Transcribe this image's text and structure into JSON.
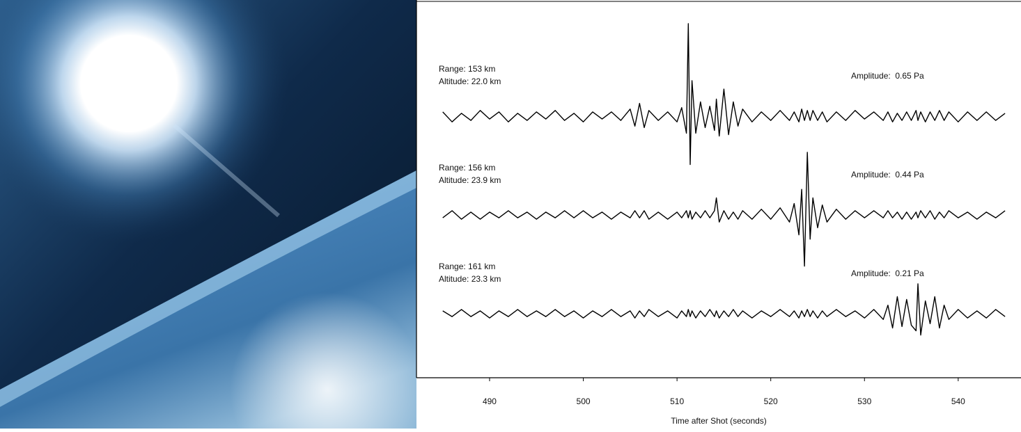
{
  "chart_data": {
    "type": "line",
    "xlabel": "Time after Shot (seconds)",
    "xlim": [
      482.2,
      546.7
    ],
    "xticks": [
      490,
      500,
      510,
      520,
      530,
      540
    ],
    "ylim": [
      -0.4,
      0.7
    ],
    "x": [
      485,
      486,
      487,
      488,
      489,
      490,
      491,
      492,
      493,
      494,
      495,
      496,
      497,
      498,
      499,
      500,
      501,
      502,
      503,
      504,
      505,
      505.5,
      506,
      506.5,
      507,
      508,
      509,
      510,
      510.5,
      511,
      511.2,
      511.4,
      511.6,
      512,
      512.5,
      513,
      513.5,
      514,
      514.2,
      514.5,
      515,
      515.5,
      516,
      516.5,
      517,
      518,
      519,
      520,
      521,
      522,
      522.5,
      523,
      523.3,
      523.6,
      523.9,
      524.2,
      524.5,
      525,
      525.5,
      526,
      527,
      528,
      529,
      530,
      531,
      532,
      532.5,
      533,
      533.5,
      534,
      534.5,
      535,
      535.5,
      535.7,
      536,
      536.5,
      537,
      537.5,
      538,
      538.5,
      539,
      540,
      541,
      542,
      543,
      544,
      545
    ],
    "series": [
      {
        "range_label": "Range: 153 km",
        "altitude_label": "Altitude: 22.0 km",
        "amplitude_label": "Amplitude:  0.65 Pa",
        "color": "#000000",
        "values": [
          0.03,
          -0.04,
          0.02,
          -0.03,
          0.04,
          -0.02,
          0.03,
          -0.04,
          0.02,
          -0.03,
          0.03,
          -0.02,
          0.04,
          -0.03,
          0.02,
          -0.04,
          0.03,
          -0.02,
          0.03,
          -0.03,
          0.05,
          -0.07,
          0.09,
          -0.08,
          0.04,
          -0.03,
          0.03,
          -0.04,
          0.06,
          -0.12,
          0.65,
          -0.34,
          0.25,
          -0.12,
          0.1,
          -0.08,
          0.07,
          -0.1,
          0.12,
          -0.14,
          0.19,
          -0.13,
          0.1,
          -0.07,
          0.05,
          -0.04,
          0.03,
          -0.03,
          0.04,
          -0.03,
          0.03,
          -0.04,
          0.05,
          -0.03,
          0.04,
          -0.03,
          0.04,
          -0.03,
          0.03,
          -0.04,
          0.03,
          -0.03,
          0.04,
          -0.02,
          0.03,
          -0.03,
          0.03,
          -0.04,
          0.02,
          -0.03,
          0.03,
          -0.03,
          0.04,
          -0.03,
          0.03,
          -0.04,
          0.03,
          -0.03,
          0.04,
          -0.03,
          0.03,
          -0.04,
          0.03,
          -0.03,
          0.03,
          -0.03,
          0.02
        ]
      },
      {
        "range_label": "Range: 156 km",
        "altitude_label": "Altitude: 23.9 km",
        "amplitude_label": "Amplitude:  0.44 Pa",
        "color": "#000000",
        "values": [
          -0.02,
          0.03,
          -0.03,
          0.02,
          -0.03,
          0.02,
          -0.02,
          0.03,
          -0.02,
          0.02,
          -0.03,
          0.02,
          -0.02,
          0.03,
          -0.02,
          0.03,
          -0.02,
          0.02,
          -0.03,
          0.02,
          -0.02,
          0.03,
          -0.02,
          0.03,
          -0.03,
          0.02,
          -0.03,
          0.02,
          -0.02,
          0.03,
          -0.02,
          0.03,
          -0.03,
          0.02,
          -0.02,
          0.03,
          -0.02,
          0.03,
          0.12,
          -0.05,
          0.03,
          -0.03,
          0.02,
          -0.03,
          0.03,
          -0.03,
          0.04,
          -0.03,
          0.05,
          -0.05,
          0.08,
          -0.14,
          0.18,
          -0.36,
          0.44,
          -0.17,
          0.12,
          -0.09,
          0.07,
          -0.05,
          0.04,
          -0.03,
          0.03,
          -0.02,
          0.03,
          -0.02,
          0.03,
          -0.02,
          0.02,
          -0.03,
          0.02,
          -0.03,
          0.02,
          -0.02,
          0.03,
          -0.02,
          0.03,
          -0.03,
          0.02,
          -0.02,
          0.03,
          -0.02,
          0.02,
          -0.03,
          0.02,
          -0.02,
          0.03
        ]
      },
      {
        "range_label": "Range: 161 km",
        "altitude_label": "Altitude: 23.3 km",
        "amplitude_label": "Amplitude:  0.21 Pa",
        "color": "#000000",
        "values": [
          0.02,
          -0.02,
          0.03,
          -0.02,
          0.02,
          -0.03,
          0.02,
          -0.02,
          0.03,
          -0.02,
          0.02,
          -0.02,
          0.03,
          -0.02,
          0.02,
          -0.03,
          0.02,
          -0.02,
          0.03,
          -0.02,
          0.02,
          -0.03,
          0.02,
          -0.02,
          0.03,
          -0.02,
          0.02,
          -0.03,
          0.02,
          -0.02,
          0.03,
          -0.02,
          0.02,
          -0.03,
          0.02,
          -0.02,
          0.03,
          -0.02,
          0.02,
          -0.03,
          0.02,
          -0.02,
          0.03,
          -0.02,
          0.02,
          -0.03,
          0.02,
          -0.02,
          0.03,
          -0.02,
          0.02,
          -0.03,
          0.02,
          -0.02,
          0.03,
          -0.02,
          0.02,
          -0.03,
          0.02,
          -0.02,
          0.03,
          -0.02,
          0.02,
          -0.03,
          0.03,
          -0.04,
          0.06,
          -0.1,
          0.12,
          -0.09,
          0.1,
          -0.08,
          -0.12,
          0.21,
          -0.15,
          0.09,
          -0.07,
          0.12,
          -0.1,
          0.06,
          -0.04,
          0.03,
          -0.03,
          0.02,
          -0.03,
          0.03,
          -0.02
        ]
      }
    ]
  }
}
